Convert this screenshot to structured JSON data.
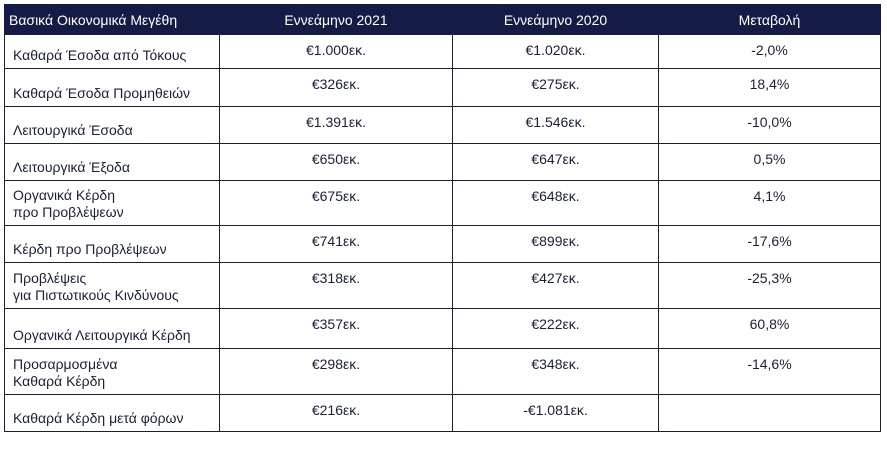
{
  "header": {
    "col1": "Βασικά Οικονομικά Μεγέθη",
    "col2": "Εννεάμηνο 2021",
    "col3": "Εννεάμηνο 2020",
    "col4": "Μεταβολή"
  },
  "rows": [
    {
      "label_line1": "Καθαρά Έσοδα από Τόκους",
      "label_line2": "",
      "v2021": "€1.000εκ.",
      "v2020": "€1.020εκ.",
      "change": "-2,0%"
    },
    {
      "label_line1": "Καθαρά Έσοδα Προμηθειών",
      "label_line2": "",
      "v2021": "€326εκ.",
      "v2020": "€275εκ.",
      "change": "18,4%"
    },
    {
      "label_line1": "Λειτουργικά Έσοδα",
      "label_line2": "",
      "v2021": "€1.391εκ.",
      "v2020": "€1.546εκ.",
      "change": "-10,0%"
    },
    {
      "label_line1": "Λειτουργικά Έξοδα",
      "label_line2": "",
      "v2021": "€650εκ.",
      "v2020": "€647εκ.",
      "change": "0,5%"
    },
    {
      "label_line1": "Οργανικά Κέρδη",
      "label_line2": "προ Προβλέψεων",
      "v2021": "€675εκ.",
      "v2020": "€648εκ.",
      "change": "4,1%"
    },
    {
      "label_line1": "Κέρδη προ Προβλέψεων",
      "label_line2": "",
      "v2021": "€741εκ.",
      "v2020": "€899εκ.",
      "change": "-17,6%"
    },
    {
      "label_line1": "Προβλέψεις",
      "label_line2": "για Πιστωτικούς Κινδύνους",
      "v2021": "€318εκ.",
      "v2020": "€427εκ.",
      "change": "-25,3%"
    },
    {
      "label_line1": "Οργανικά Λειτουργικά Κέρδη",
      "label_line2": "",
      "v2021": "€357εκ.",
      "v2020": "€222εκ.",
      "change": "60,8%"
    },
    {
      "label_line1": "Προσαρμοσμένα",
      "label_line2": "Καθαρά Κέρδη",
      "v2021": "€298εκ.",
      "v2020": "€348εκ.",
      "change": "-14,6%"
    },
    {
      "label_line1": "Καθαρά Κέρδη μετά φόρων",
      "label_line2": "",
      "v2021": "€216εκ.",
      "v2020": "-€1.081εκ.",
      "change": ""
    }
  ],
  "colors": {
    "header_bg": "#141b44",
    "header_text": "#ffffff",
    "text": "#1a1f3a",
    "border": "#1a1f3a"
  }
}
